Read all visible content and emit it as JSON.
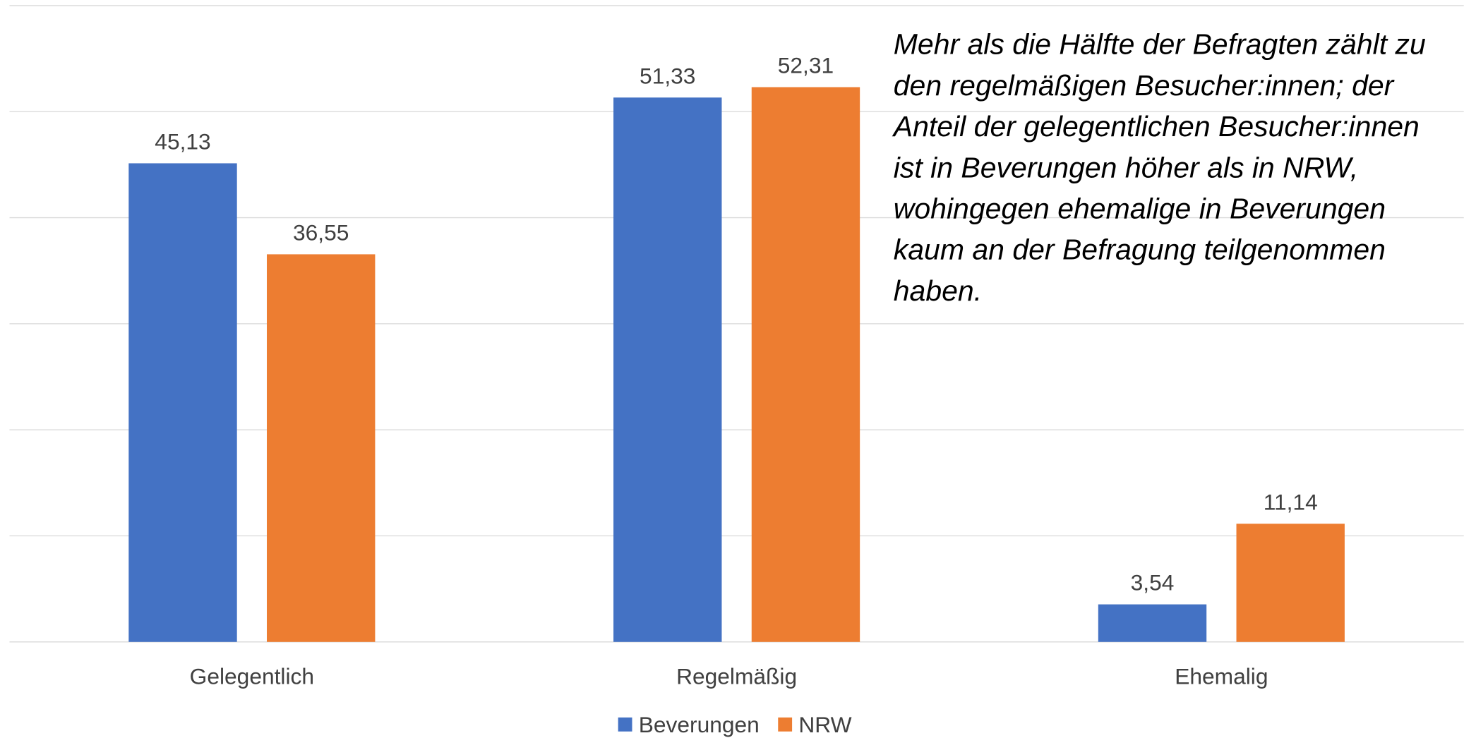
{
  "chart_data": {
    "type": "bar",
    "categories": [
      "Gelegentlich",
      "Regelmäßig",
      "Ehemalig"
    ],
    "series": [
      {
        "name": "Beverungen",
        "color": "#4472c4",
        "values": [
          45.13,
          51.33,
          3.54
        ],
        "value_labels": [
          "45,13",
          "51,33",
          "3,54"
        ]
      },
      {
        "name": "NRW",
        "color": "#ed7d31",
        "values": [
          36.55,
          52.31,
          11.14
        ],
        "value_labels": [
          "36,55",
          "52,31",
          "11,14"
        ]
      }
    ],
    "ylim": [
      0,
      60
    ],
    "yticks": [
      0,
      10,
      20,
      30,
      40,
      50,
      60
    ],
    "grid": true,
    "legend": "bottom",
    "annotation": [
      "Mehr als die Hälfte der Befragten zählt zu",
      "den regelmäßigen Besucher:innen; der",
      "Anteil der gelegentlichen Besucher:innen",
      "ist in Beverungen höher als in NRW,",
      "wohingegen ehemalige in Beverungen",
      "kaum an der Befragung teilgenommen",
      "haben."
    ]
  }
}
